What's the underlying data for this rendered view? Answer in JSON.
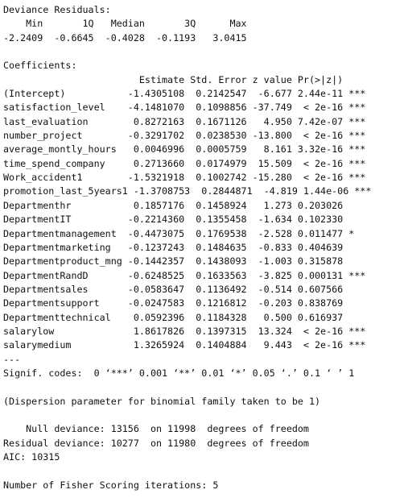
{
  "console": {
    "lines": [
      "Deviance Residuals:",
      "    Min       1Q   Median       3Q      Max",
      "-2.2409  -0.6645  -0.4028  -0.1193   3.0415",
      "",
      "Coefficients:",
      "                        Estimate Std. Error z value Pr(>|z|)",
      "(Intercept)           -1.4305108  0.2142547  -6.677 2.44e-11 ***",
      "satisfaction_level    -4.1481070  0.1098856 -37.749  < 2e-16 ***",
      "last_evaluation        0.8272163  0.1671126   4.950 7.42e-07 ***",
      "number_project        -0.3291702  0.0238530 -13.800  < 2e-16 ***",
      "average_montly_hours   0.0046996  0.0005759   8.161 3.32e-16 ***",
      "time_spend_company     0.2713660  0.0174979  15.509  < 2e-16 ***",
      "Work_accident1        -1.5321918  0.1002742 -15.280  < 2e-16 ***",
      "promotion_last_5years1 -1.3708753  0.2844871  -4.819 1.44e-06 ***",
      "Departmenthr           0.1857176  0.1458924   1.273 0.203026",
      "DepartmentIT          -0.2214360  0.1355458  -1.634 0.102330",
      "Departmentmanagement  -0.4473075  0.1769538  -2.528 0.011477 *",
      "Departmentmarketing   -0.1237243  0.1484635  -0.833 0.404639",
      "Departmentproduct_mng -0.1442357  0.1438093  -1.003 0.315878",
      "DepartmentRandD       -0.6248525  0.1633563  -3.825 0.000131 ***",
      "Departmentsales       -0.0583647  0.1136492  -0.514 0.607566",
      "Departmentsupport     -0.0247583  0.1216812  -0.203 0.838769",
      "Departmenttechnical    0.0592396  0.1184328   0.500 0.616937",
      "salarylow              1.8617826  0.1397315  13.324  < 2e-16 ***",
      "salarymedium           1.3265924  0.1404884   9.443  < 2e-16 ***",
      "---",
      "Signif. codes:  0 ‘***’ 0.001 ‘**’ 0.01 ‘*’ 0.05 ‘.’ 0.1 ‘ ’ 1",
      "",
      "(Dispersion parameter for binomial family taken to be 1)",
      "",
      "    Null deviance: 13156  on 11998  degrees of freedom",
      "Residual deviance: 10277  on 11980  degrees of freedom",
      "AIC: 10315",
      "",
      "Number of Fisher Scoring iterations: 5"
    ]
  }
}
